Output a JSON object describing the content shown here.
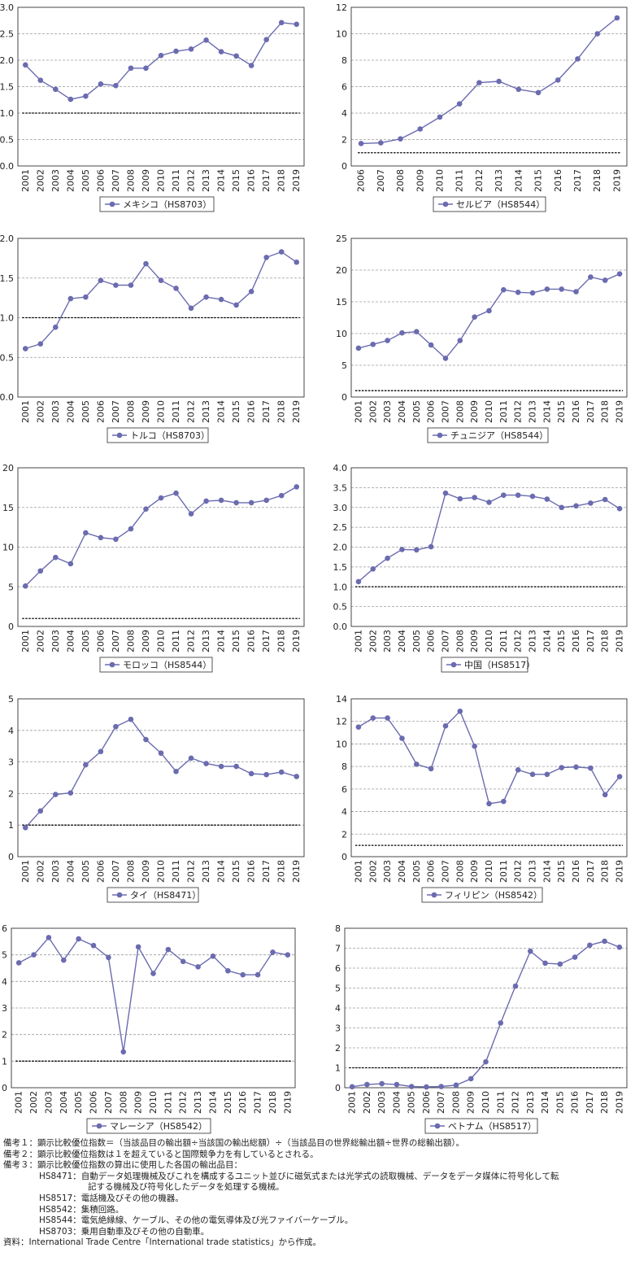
{
  "chart_data": [
    {
      "type": "line",
      "legend": "メキシコ（HS8703）",
      "x": [
        "2001",
        "2002",
        "2003",
        "2004",
        "2005",
        "2006",
        "2007",
        "2008",
        "2009",
        "2010",
        "2011",
        "2012",
        "2013",
        "2014",
        "2015",
        "2016",
        "2017",
        "2018",
        "2019"
      ],
      "values": [
        1.91,
        1.62,
        1.45,
        1.26,
        1.32,
        1.55,
        1.52,
        1.85,
        1.85,
        2.09,
        2.17,
        2.21,
        2.38,
        2.16,
        2.08,
        1.9,
        2.39,
        2.71,
        2.68
      ],
      "reference_line": 1.0,
      "ylim": [
        0,
        3.0
      ],
      "yticks": [
        "0.0",
        "0.5",
        "1.0",
        "1.5",
        "2.0",
        "2.5",
        "3.0"
      ]
    },
    {
      "type": "line",
      "legend": "セルビア（HS8544）",
      "x": [
        "2006",
        "2007",
        "2008",
        "2009",
        "2010",
        "2011",
        "2012",
        "2013",
        "2014",
        "2015",
        "2016",
        "2017",
        "2018",
        "2019"
      ],
      "values": [
        1.7,
        1.75,
        2.05,
        2.8,
        3.7,
        4.7,
        6.3,
        6.4,
        5.8,
        5.55,
        6.5,
        8.1,
        10.0,
        11.2
      ],
      "reference_line": 1.0,
      "ylim": [
        0,
        12
      ],
      "yticks": [
        "0",
        "2",
        "4",
        "6",
        "8",
        "10",
        "12"
      ]
    },
    {
      "type": "line",
      "legend": "トルコ（HS8703）",
      "x": [
        "2001",
        "2002",
        "2003",
        "2004",
        "2005",
        "2006",
        "2007",
        "2008",
        "2009",
        "2010",
        "2011",
        "2012",
        "2013",
        "2014",
        "2015",
        "2016",
        "2017",
        "2018",
        "2019"
      ],
      "values": [
        0.61,
        0.67,
        0.88,
        1.24,
        1.26,
        1.47,
        1.41,
        1.41,
        1.68,
        1.47,
        1.37,
        1.12,
        1.26,
        1.23,
        1.16,
        1.33,
        1.76,
        1.83,
        1.7
      ],
      "reference_line": 1.0,
      "ylim": [
        0,
        2.0
      ],
      "yticks": [
        "0.0",
        "0.5",
        "1.0",
        "1.5",
        "2.0"
      ]
    },
    {
      "type": "line",
      "legend": "チュニジア（HS8544）",
      "x": [
        "2001",
        "2002",
        "2003",
        "2004",
        "2005",
        "2006",
        "2007",
        "2008",
        "2009",
        "2010",
        "2011",
        "2012",
        "2013",
        "2014",
        "2015",
        "2016",
        "2017",
        "2018",
        "2019"
      ],
      "values": [
        7.7,
        8.3,
        8.9,
        10.1,
        10.3,
        8.2,
        6.1,
        8.9,
        12.6,
        13.6,
        16.9,
        16.5,
        16.4,
        17.0,
        17.0,
        16.6,
        18.9,
        18.4,
        19.4
      ],
      "reference_line": 1.0,
      "ylim": [
        0,
        25
      ],
      "yticks": [
        "0",
        "5",
        "10",
        "15",
        "20",
        "25"
      ]
    },
    {
      "type": "line",
      "legend": "モロッコ（HS8544）",
      "x": [
        "2001",
        "2002",
        "2003",
        "2004",
        "2005",
        "2006",
        "2007",
        "2008",
        "2009",
        "2010",
        "2011",
        "2012",
        "2013",
        "2014",
        "2015",
        "2016",
        "2017",
        "2018",
        "2019"
      ],
      "values": [
        5.1,
        7.0,
        8.7,
        7.9,
        11.8,
        11.2,
        11.0,
        12.3,
        14.8,
        16.2,
        16.8,
        14.2,
        15.8,
        15.9,
        15.6,
        15.6,
        15.9,
        16.5,
        17.6
      ],
      "reference_line": 1.0,
      "ylim": [
        0,
        20
      ],
      "yticks": [
        "0",
        "5",
        "10",
        "15",
        "20"
      ]
    },
    {
      "type": "line",
      "legend": "中国（HS8517）",
      "x": [
        "2001",
        "2002",
        "2003",
        "2004",
        "2005",
        "2006",
        "2007",
        "2008",
        "2009",
        "2010",
        "2011",
        "2012",
        "2013",
        "2014",
        "2015",
        "2016",
        "2017",
        "2018",
        "2019"
      ],
      "values": [
        1.13,
        1.45,
        1.72,
        1.94,
        1.93,
        2.01,
        3.36,
        3.22,
        3.25,
        3.13,
        3.31,
        3.31,
        3.28,
        3.21,
        3.0,
        3.04,
        3.11,
        3.2,
        2.97
      ],
      "reference_line": 1.0,
      "ylim": [
        0,
        4.0
      ],
      "yticks": [
        "0.0",
        "0.5",
        "1.0",
        "1.5",
        "2.0",
        "2.5",
        "3.0",
        "3.5",
        "4.0"
      ]
    },
    {
      "type": "line",
      "legend": "タイ（HS8471）",
      "x": [
        "2001",
        "2002",
        "2003",
        "2004",
        "2005",
        "2006",
        "2007",
        "2008",
        "2009",
        "2010",
        "2011",
        "2012",
        "2013",
        "2014",
        "2015",
        "2016",
        "2017",
        "2018",
        "2019"
      ],
      "values": [
        0.92,
        1.45,
        1.97,
        2.02,
        2.91,
        3.33,
        4.12,
        4.35,
        3.71,
        3.28,
        2.7,
        3.12,
        2.95,
        2.86,
        2.86,
        2.63,
        2.6,
        2.68,
        2.54
      ],
      "reference_line": 1.0,
      "ylim": [
        0,
        5
      ],
      "yticks": [
        "0",
        "1",
        "2",
        "3",
        "4",
        "5"
      ]
    },
    {
      "type": "line",
      "legend": "フィリピン（HS8542）",
      "x": [
        "2001",
        "2002",
        "2003",
        "2004",
        "2005",
        "2006",
        "2007",
        "2008",
        "2009",
        "2010",
        "2011",
        "2012",
        "2013",
        "2014",
        "2015",
        "2016",
        "2017",
        "2018",
        "2019"
      ],
      "values": [
        11.5,
        12.3,
        12.3,
        10.5,
        8.2,
        7.8,
        11.6,
        12.9,
        9.8,
        4.7,
        4.9,
        7.7,
        7.3,
        7.3,
        7.9,
        7.95,
        7.85,
        5.5,
        7.1
      ],
      "reference_line": 1.0,
      "ylim": [
        0,
        14
      ],
      "yticks": [
        "0",
        "2",
        "4",
        "6",
        "8",
        "10",
        "12",
        "14"
      ]
    },
    {
      "type": "line",
      "legend": "マレーシア（HS8542）",
      "x": [
        "2001",
        "2002",
        "2003",
        "2004",
        "2005",
        "2006",
        "2007",
        "2008",
        "2009",
        "2010",
        "2011",
        "2012",
        "2013",
        "2014",
        "2015",
        "2016",
        "2017",
        "2018",
        "2019"
      ],
      "values": [
        4.7,
        5.0,
        5.65,
        4.8,
        5.6,
        5.35,
        4.9,
        1.35,
        5.3,
        4.3,
        5.2,
        4.75,
        4.55,
        4.95,
        4.4,
        4.25,
        4.25,
        5.1,
        5.0
      ],
      "reference_line": 1.0,
      "ylim": [
        0,
        6
      ],
      "yticks": [
        "0",
        "1",
        "2",
        "3",
        "4",
        "5",
        "6"
      ]
    },
    {
      "type": "line",
      "legend": "ベトナム（HS8517）",
      "x": [
        "2001",
        "2002",
        "2003",
        "2004",
        "2005",
        "2006",
        "2007",
        "2008",
        "2009",
        "2010",
        "2011",
        "2012",
        "2013",
        "2014",
        "2015",
        "2016",
        "2017",
        "2018",
        "2019"
      ],
      "values": [
        0.05,
        0.16,
        0.2,
        0.16,
        0.06,
        0.04,
        0.06,
        0.13,
        0.45,
        1.3,
        3.25,
        5.1,
        6.85,
        6.25,
        6.2,
        6.55,
        7.15,
        7.35,
        7.05
      ],
      "reference_line": 1.0,
      "ylim": [
        0,
        8
      ],
      "yticks": [
        "0",
        "1",
        "2",
        "3",
        "4",
        "5",
        "6",
        "7",
        "8"
      ]
    }
  ],
  "style": {
    "line_color": "#6b6bb0",
    "marker_color": "#6b6bb0",
    "grid_color": "#9a9a9a",
    "reference_color": "#000000",
    "grid": true,
    "legend_placement": "bottom",
    "marker": "circle"
  },
  "notes": {
    "note1": "備考１：顕示比較優位指数＝（当該品目の輸出額÷当該国の輸出総額）÷（当該品目の世界総輸出額÷世界の総輸出額）。",
    "note2": "備考２：顕示比較優位指数は１を超えていると国際競争力を有しているとされる。",
    "note3": "備考３：顕示比較優位指数の算出に使用した各国の輸出品目：",
    "hs8471_a": "HS8471：自動データ処理機械及びこれを構成するユニット並びに磁気式または光学式の読取機械、データをデータ媒体に符号化して転",
    "hs8471_b": "記する機械及び符号化したデータを処理する機械。",
    "hs8517": "HS8517：電話機及びその他の機器。",
    "hs8542": "HS8542：集積回路。",
    "hs8544": "HS8544：電気絶縁線、ケーブル、その他の電気導体及び光ファイバーケーブル。",
    "hs8703": "HS8703：乗用自動車及びその他の自動車。",
    "source": "資料：International Trade Centre「International trade statistics」から作成。"
  }
}
